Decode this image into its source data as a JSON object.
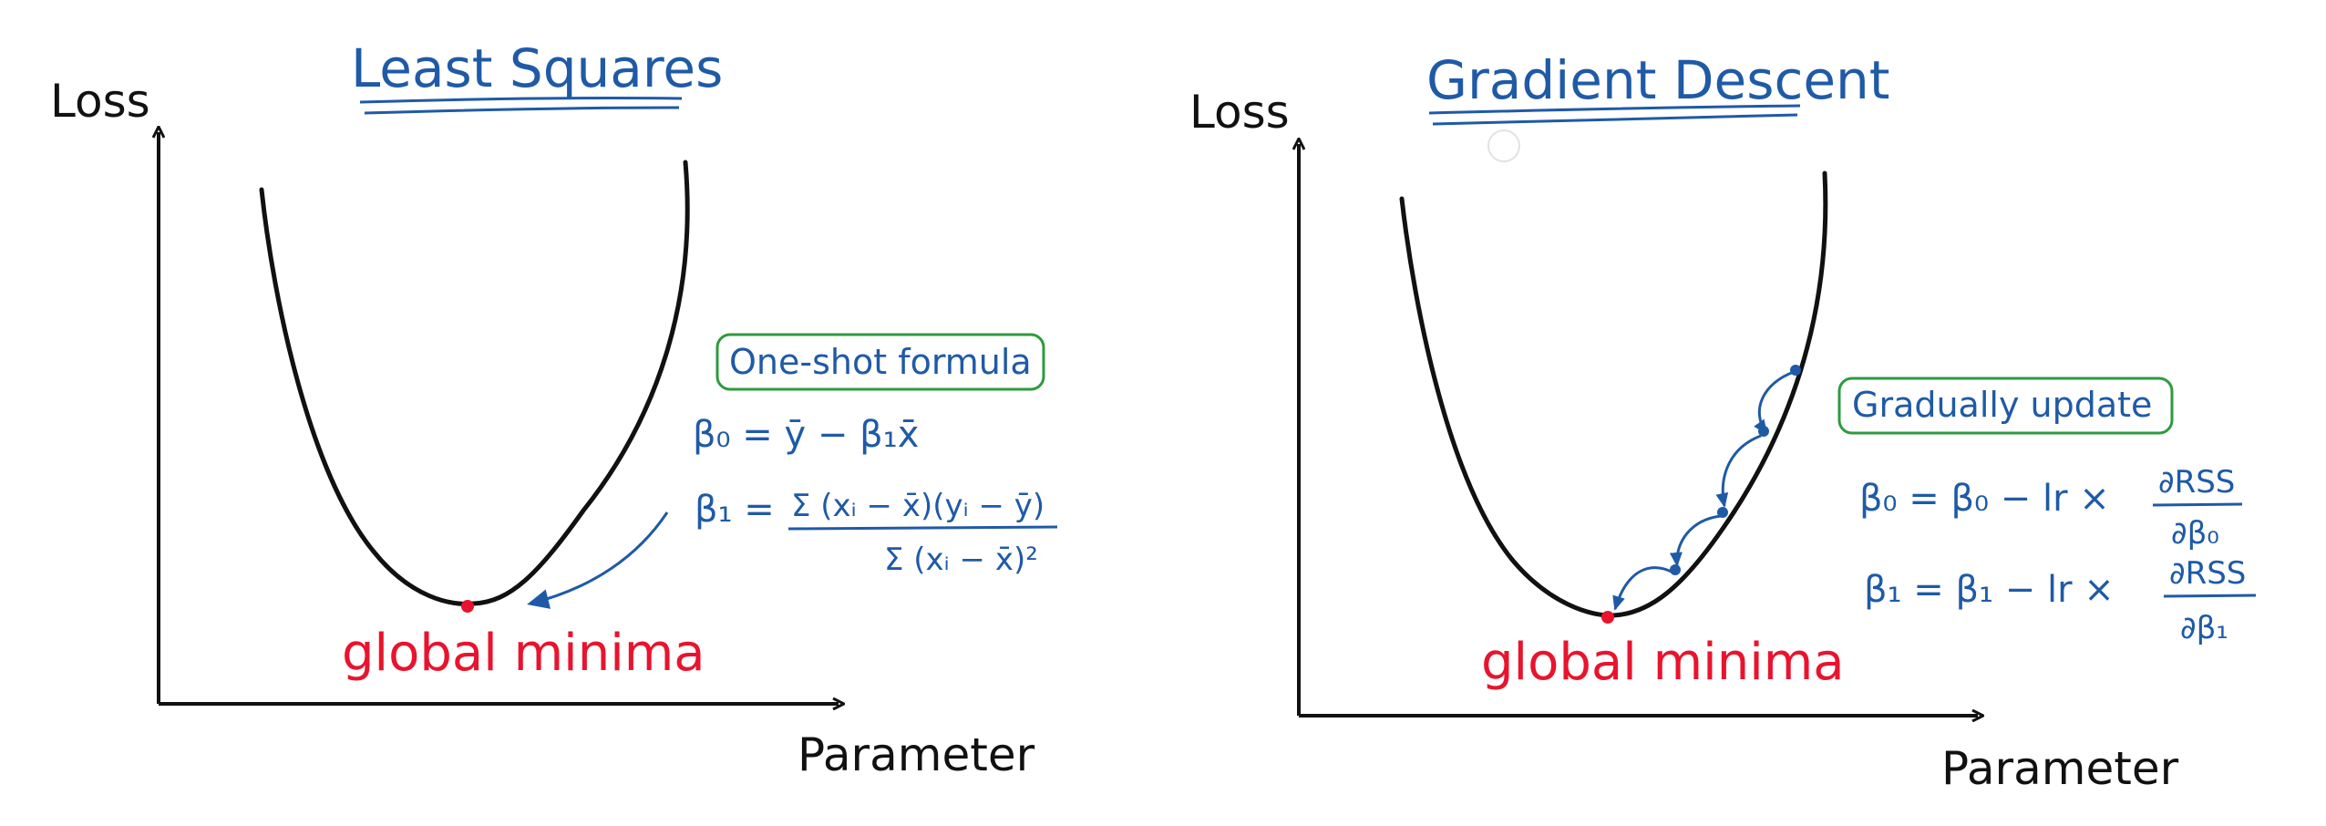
{
  "panels": [
    {
      "title": "Least Squares",
      "y_axis_label": "Loss",
      "x_axis_label": "Parameter",
      "minimum_label": "global minima",
      "box_label": "One-shot formula",
      "formulas": {
        "b0": "β₀ = ȳ − β₁x̄",
        "b1_lhs": "β₁ =",
        "b1_numerator": "Σ (xᵢ − x̄)(yᵢ − ȳ)",
        "b1_denominator": "Σ (xᵢ − x̄)²"
      }
    },
    {
      "title": "Gradient Descent",
      "y_axis_label": "Loss",
      "x_axis_label": "Parameter",
      "minimum_label": "global minima",
      "box_label": "Gradually update",
      "formulas": {
        "b0_lhs": "β₀ = β₀ − lr ×",
        "b0_numerator": "∂RSS",
        "b0_denominator": "∂β₀",
        "b1_lhs": "β₁ = β₁ − lr ×",
        "b1_numerator": "∂RSS",
        "b1_denominator": "∂β₁"
      }
    }
  ],
  "colors": {
    "ink": "#111111",
    "blue": "#1f5aa6",
    "red": "#e8142e",
    "green": "#2f9a3f"
  }
}
